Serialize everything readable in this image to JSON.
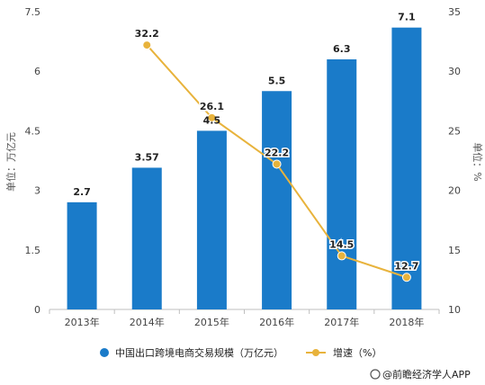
{
  "chart_data": {
    "type": "bar",
    "categories": [
      "2013年",
      "2014年",
      "2015年",
      "2016年",
      "2017年",
      "2018年"
    ],
    "series": [
      {
        "name": "中国出口跨境电商交易规模（万亿元）",
        "type": "bar",
        "axis": "left",
        "values": [
          2.7,
          3.57,
          4.5,
          5.5,
          6.3,
          7.1
        ],
        "labels": [
          "2.7",
          "3.57",
          "4.5",
          "5.5",
          "6.3",
          "7.1"
        ],
        "color": "#1a7bc9"
      },
      {
        "name": "增速（%）",
        "type": "line",
        "axis": "right",
        "values": [
          null,
          32.2,
          26.1,
          22.2,
          14.5,
          12.7
        ],
        "labels": [
          null,
          "32.2",
          "26.1",
          "22.2",
          "14.5",
          "12.7"
        ],
        "color": "#e8b33c"
      }
    ],
    "ylabel": "单位：万亿元",
    "y2label": "单位：%",
    "ylim": [
      0,
      7.5
    ],
    "yticks": [
      0,
      1.5,
      3,
      4.5,
      6,
      7.5
    ],
    "ytick_labels": [
      "0",
      "1.5",
      "3",
      "4.5",
      "6",
      "7.5"
    ],
    "y2lim": [
      10,
      35
    ],
    "y2ticks": [
      10,
      15,
      20,
      25,
      30,
      35
    ],
    "y2tick_labels": [
      "10",
      "15",
      "20",
      "25",
      "30",
      "35"
    ],
    "grid": false,
    "legend_position": "bottom"
  },
  "credit": "@前瞻经济学人APP"
}
